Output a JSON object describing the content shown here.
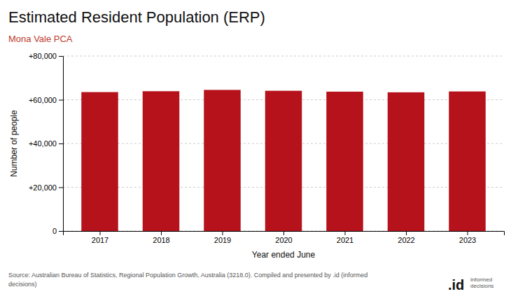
{
  "chart_data": {
    "type": "bar",
    "title": "Estimated Resident Population (ERP)",
    "subtitle": "Mona Vale PCA",
    "x_label": "Year ended June",
    "y_label": "Number of people",
    "x": [
      2017,
      2018,
      2019,
      2020,
      2021,
      2022,
      2023
    ],
    "values": [
      63500,
      63900,
      64500,
      64100,
      63700,
      63400,
      63800
    ],
    "color": "#b5121b",
    "xlim": [
      2016.4,
      2023.6
    ],
    "xticks": [
      2017,
      2018,
      2019,
      2020,
      2021,
      2022,
      2023
    ],
    "ylim": [
      0,
      80000
    ],
    "yticks": [
      0,
      {
        "value": 20000,
        "label": "+20,000"
      },
      {
        "value": 40000,
        "label": "+40,000"
      },
      {
        "value": 60000,
        "label": "+60,000"
      },
      {
        "value": 80000,
        "label": "+80,000"
      }
    ],
    "grid": true,
    "source": [
      "Source: Australian Bureau of Statistics, Regional Population Growth, Australia (3218.0). Compiled and presented by .id (informed",
      "decisions)"
    ],
    "annotations": [
      ".id",
      "informed",
      "decisions"
    ]
  }
}
